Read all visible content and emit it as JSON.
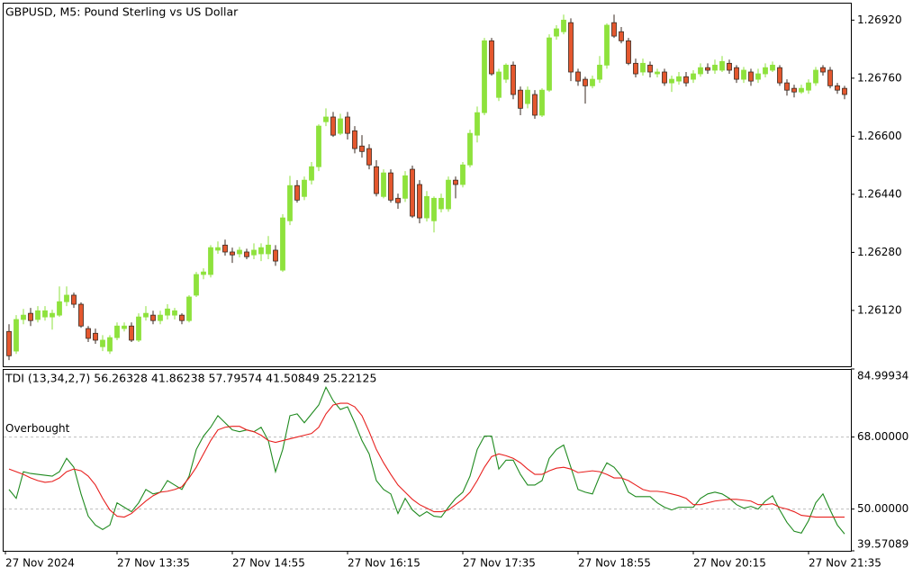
{
  "chart_data": [
    {
      "type": "candlestick",
      "title": "GBPUSD, M5:  Pound Sterling vs US Dollar",
      "up_color": "#8ee23c",
      "down_color": "#e4572e",
      "xlim": [
        -0.875,
        116.875
      ],
      "ylim": [
        1.25966,
        1.26968
      ],
      "yticks": [
        {
          "value": 1.2692,
          "label": "1.26920"
        },
        {
          "value": 1.2676,
          "label": "1.26760"
        },
        {
          "value": 1.266,
          "label": "1.26600"
        },
        {
          "value": 1.2644,
          "label": "1.26440"
        },
        {
          "value": 1.2628,
          "label": "1.26280"
        },
        {
          "value": 1.2612,
          "label": "1.26120"
        }
      ],
      "open": [
        1.26062,
        1.26008,
        1.26095,
        1.26112,
        1.26095,
        1.26102,
        1.26102,
        1.26107,
        1.26144,
        1.26162,
        1.26137,
        1.2607,
        1.26057,
        1.2602,
        1.26008,
        1.26045,
        1.2607,
        1.26077,
        1.26038,
        1.26102,
        1.26107,
        1.26092,
        1.26107,
        1.26107,
        1.26107,
        1.26092,
        1.26162,
        1.26219,
        1.26219,
        1.26286,
        1.263,
        1.26281,
        1.26276,
        1.26281,
        1.26273,
        1.26276,
        1.26276,
        1.26286,
        1.26231,
        1.26367,
        1.26464,
        1.26434,
        1.26479,
        1.26516,
        1.2664,
        1.26653,
        1.26608,
        1.26653,
        1.26615,
        1.26573,
        1.26566,
        1.26516,
        1.26434,
        1.26499,
        1.26429,
        1.26429,
        1.26509,
        1.26467,
        1.26375,
        1.26367,
        1.264,
        1.264,
        1.26479,
        1.26467,
        1.26521,
        1.26603,
        1.26665,
        1.26863,
        1.26707,
        1.26757,
        1.26796,
        1.26727,
        1.2669,
        1.26715,
        1.26658,
        1.26727,
        1.26876,
        1.26888,
        1.26913,
        1.26777,
        1.26757,
        1.26739,
        1.26757,
        1.26796,
        1.26913,
        1.26888,
        1.26863,
        1.26801,
        1.26777,
        1.26796,
        1.26772,
        1.26777,
        1.26747,
        1.26752,
        1.26764,
        1.26757,
        1.26772,
        1.26789,
        1.26782,
        1.26782,
        1.26801,
        1.26789,
        1.26757,
        1.26777,
        1.26757,
        1.26772,
        1.26782,
        1.26789,
        1.26747,
        1.26732,
        1.26722,
        1.26727,
        1.26747,
        1.26789,
        1.26782,
        1.26739,
        1.26732
      ],
      "high": [
        1.26082,
        1.26107,
        1.26124,
        1.26127,
        1.26132,
        1.26132,
        1.26122,
        1.26186,
        1.26186,
        1.26169,
        1.26142,
        1.26077,
        1.2607,
        1.26052,
        1.26052,
        1.26087,
        1.26087,
        1.26087,
        1.26112,
        1.26132,
        1.26119,
        1.26119,
        1.26137,
        1.26127,
        1.26112,
        1.26162,
        1.26226,
        1.26236,
        1.263,
        1.2631,
        1.26315,
        1.26293,
        1.26295,
        1.2629,
        1.26305,
        1.26305,
        1.26325,
        1.263,
        1.26385,
        1.26491,
        1.26479,
        1.26489,
        1.26529,
        1.26633,
        1.26677,
        1.26667,
        1.26662,
        1.26667,
        1.26628,
        1.26603,
        1.26578,
        1.26534,
        1.26509,
        1.26509,
        1.26442,
        1.26504,
        1.26519,
        1.26479,
        1.26449,
        1.26434,
        1.26442,
        1.26489,
        1.26489,
        1.26529,
        1.26618,
        1.26682,
        1.26871,
        1.26871,
        1.26786,
        1.26801,
        1.26806,
        1.26737,
        1.26737,
        1.26727,
        1.26732,
        1.26881,
        1.26906,
        1.26935,
        1.26925,
        1.26786,
        1.26764,
        1.26767,
        1.26821,
        1.26911,
        1.26935,
        1.26901,
        1.26871,
        1.26814,
        1.26814,
        1.26806,
        1.26786,
        1.26786,
        1.26767,
        1.26777,
        1.26777,
        1.26782,
        1.26801,
        1.26801,
        1.26811,
        1.26821,
        1.26811,
        1.26796,
        1.26791,
        1.26786,
        1.26786,
        1.26801,
        1.26806,
        1.26796,
        1.26757,
        1.26742,
        1.26742,
        1.26757,
        1.26791,
        1.26796,
        1.26791,
        1.26747,
        1.26739
      ],
      "low": [
        1.25983,
        1.26,
        1.26082,
        1.26077,
        1.26087,
        1.26092,
        1.26067,
        1.26102,
        1.26132,
        1.26127,
        1.26072,
        1.26033,
        1.26028,
        1.26008,
        1.26,
        1.26038,
        1.26062,
        1.26033,
        1.26033,
        1.26092,
        1.26082,
        1.26082,
        1.26095,
        1.26095,
        1.26082,
        1.26087,
        1.26157,
        1.26206,
        1.26211,
        1.26276,
        1.26271,
        1.26251,
        1.26266,
        1.26261,
        1.26261,
        1.26256,
        1.26261,
        1.26243,
        1.26226,
        1.26355,
        1.26417,
        1.26424,
        1.26467,
        1.26504,
        1.26628,
        1.26598,
        1.26603,
        1.26591,
        1.26553,
        1.26541,
        1.26509,
        1.26434,
        1.26429,
        1.26417,
        1.264,
        1.26419,
        1.26375,
        1.2636,
        1.26365,
        1.26335,
        1.2639,
        1.26392,
        1.26429,
        1.26459,
        1.26514,
        1.26583,
        1.26658,
        1.26767,
        1.26697,
        1.26747,
        1.26702,
        1.26658,
        1.26677,
        1.26648,
        1.26653,
        1.26722,
        1.26866,
        1.26881,
        1.26752,
        1.26739,
        1.2669,
        1.26732,
        1.26747,
        1.26786,
        1.26871,
        1.26856,
        1.26796,
        1.26762,
        1.26767,
        1.26762,
        1.26762,
        1.26739,
        1.26722,
        1.26742,
        1.26737,
        1.26747,
        1.26764,
        1.26772,
        1.26772,
        1.26777,
        1.26772,
        1.26747,
        1.26747,
        1.26739,
        1.26747,
        1.26762,
        1.26777,
        1.26739,
        1.26712,
        1.26707,
        1.26717,
        1.26717,
        1.26739,
        1.26767,
        1.26732,
        1.26717,
        1.26702
      ],
      "close": [
        1.25995,
        1.26095,
        1.26107,
        1.26092,
        1.26119,
        1.26119,
        1.26112,
        1.26144,
        1.26162,
        1.26137,
        1.26077,
        1.26043,
        1.26038,
        1.26038,
        1.26045,
        1.26077,
        1.26077,
        1.26038,
        1.26102,
        1.26112,
        1.26092,
        1.26107,
        1.26124,
        1.26119,
        1.26092,
        1.26157,
        1.26219,
        1.26226,
        1.26293,
        1.26293,
        1.26281,
        1.26273,
        1.26286,
        1.26268,
        1.26286,
        1.26293,
        1.263,
        1.26256,
        1.26375,
        1.26464,
        1.26424,
        1.26479,
        1.26516,
        1.26628,
        1.26653,
        1.26603,
        1.26648,
        1.26608,
        1.26566,
        1.26558,
        1.26521,
        1.26442,
        1.26499,
        1.26424,
        1.26417,
        1.26491,
        1.2638,
        1.26375,
        1.26434,
        1.26429,
        1.26429,
        1.26479,
        1.26467,
        1.26521,
        1.26608,
        1.26665,
        1.26863,
        1.26772,
        1.26777,
        1.26796,
        1.26715,
        1.26677,
        1.26727,
        1.26658,
        1.26727,
        1.26871,
        1.26896,
        1.2692,
        1.26777,
        1.26752,
        1.26739,
        1.26757,
        1.26796,
        1.26906,
        1.26876,
        1.26863,
        1.26801,
        1.26772,
        1.26801,
        1.26777,
        1.26777,
        1.26747,
        1.26757,
        1.26764,
        1.26747,
        1.26772,
        1.26789,
        1.26782,
        1.26796,
        1.26806,
        1.26782,
        1.26757,
        1.26782,
        1.26752,
        1.26772,
        1.26789,
        1.26796,
        1.26747,
        1.26727,
        1.26722,
        1.26732,
        1.26747,
        1.26782,
        1.26777,
        1.26739,
        1.26727,
        1.26715
      ]
    },
    {
      "type": "line",
      "title": "TDI (13,34,2,7) 56.26328 41.86238 57.79574 41.50849 25.22125",
      "xlim": [
        -0.875,
        116.875
      ],
      "xticks": [
        {
          "value": -0.5,
          "label": "27 Nov 2024"
        },
        {
          "value": 15,
          "label": "27 Nov 13:35"
        },
        {
          "value": 31,
          "label": "27 Nov 14:55"
        },
        {
          "value": 47,
          "label": "27 Nov 16:15"
        },
        {
          "value": 63,
          "label": "27 Nov 17:35"
        },
        {
          "value": 79,
          "label": "27 Nov 18:55"
        },
        {
          "value": 95,
          "label": "27 Nov 20:15"
        },
        {
          "value": 111,
          "label": "27 Nov 21:35"
        }
      ],
      "ylim": [
        39.57089,
        84.99934
      ],
      "yticks": [
        84.99934,
        {
          "value": 68,
          "label": "68.00000"
        },
        {
          "value": 50,
          "label": "50.00000"
        },
        39.57089
      ],
      "grid": true,
      "annotations": [
        {
          "text": "Overbought",
          "value": 68
        }
      ],
      "series": [
        {
          "color": "#1f8a1f",
          "values": [
            54.89,
            52.67,
            59.33,
            58.89,
            58.67,
            58.45,
            58.22,
            59.33,
            62.67,
            60.45,
            53.78,
            48.22,
            46.0,
            44.89,
            46.0,
            51.56,
            50.45,
            49.34,
            51.56,
            54.89,
            53.78,
            54.22,
            57.11,
            56.0,
            54.89,
            58.22,
            64.89,
            68.22,
            70.44,
            73.33,
            71.56,
            69.78,
            69.33,
            69.78,
            69.33,
            70.44,
            67.11,
            59.33,
            64.89,
            73.33,
            73.78,
            71.56,
            73.78,
            76.0,
            80.44,
            77.11,
            74.89,
            75.55,
            71.56,
            67.11,
            63.78,
            57.11,
            54.89,
            53.78,
            48.89,
            52.67,
            49.78,
            48.22,
            49.34,
            48.22,
            48.0,
            50.45,
            52.67,
            54.22,
            58.22,
            64.89,
            68.22,
            68.22,
            60.0,
            62.22,
            62.22,
            58.67,
            56.0,
            56.0,
            57.11,
            62.67,
            64.89,
            66.0,
            60.45,
            54.89,
            54.22,
            53.78,
            58.22,
            61.56,
            60.45,
            58.22,
            54.22,
            53.11,
            53.11,
            53.11,
            51.56,
            50.45,
            49.78,
            50.45,
            50.45,
            50.45,
            52.67,
            53.78,
            54.22,
            53.78,
            52.67,
            51.11,
            50.22,
            50.67,
            50.0,
            52.0,
            53.33,
            49.78,
            46.67,
            44.45,
            44.0,
            47.11,
            51.56,
            53.78,
            49.78,
            46.0,
            43.78
          ]
        },
        {
          "color": "#e8201e",
          "values": [
            60.0,
            59.33,
            58.67,
            57.78,
            57.11,
            56.67,
            56.89,
            57.78,
            59.33,
            60.0,
            59.56,
            58.22,
            56.0,
            52.67,
            49.78,
            48.22,
            48.0,
            48.89,
            50.45,
            52.0,
            53.33,
            54.22,
            54.44,
            54.89,
            55.56,
            57.78,
            60.45,
            63.78,
            67.11,
            69.78,
            70.44,
            70.67,
            70.67,
            69.78,
            69.33,
            68.44,
            67.11,
            66.67,
            67.11,
            67.56,
            68.0,
            68.44,
            68.89,
            70.44,
            73.78,
            76.0,
            76.44,
            76.44,
            75.55,
            73.33,
            69.33,
            64.89,
            61.56,
            58.67,
            56.0,
            54.22,
            52.44,
            51.11,
            50.22,
            49.34,
            49.34,
            49.78,
            51.11,
            52.44,
            54.22,
            57.11,
            60.45,
            63.11,
            63.78,
            63.33,
            62.67,
            61.56,
            60.0,
            58.67,
            58.67,
            59.56,
            60.22,
            60.45,
            60.0,
            59.11,
            59.33,
            59.56,
            59.33,
            58.67,
            57.78,
            57.78,
            57.11,
            56.0,
            54.89,
            54.44,
            54.44,
            54.22,
            53.78,
            53.33,
            52.67,
            51.11,
            51.11,
            51.56,
            52.0,
            52.22,
            52.44,
            52.44,
            52.22,
            52.0,
            51.11,
            51.11,
            51.33,
            50.45,
            50.0,
            49.34,
            48.44,
            48.22,
            48.0,
            48.0,
            48.0,
            48.0,
            48.0
          ]
        }
      ]
    }
  ]
}
